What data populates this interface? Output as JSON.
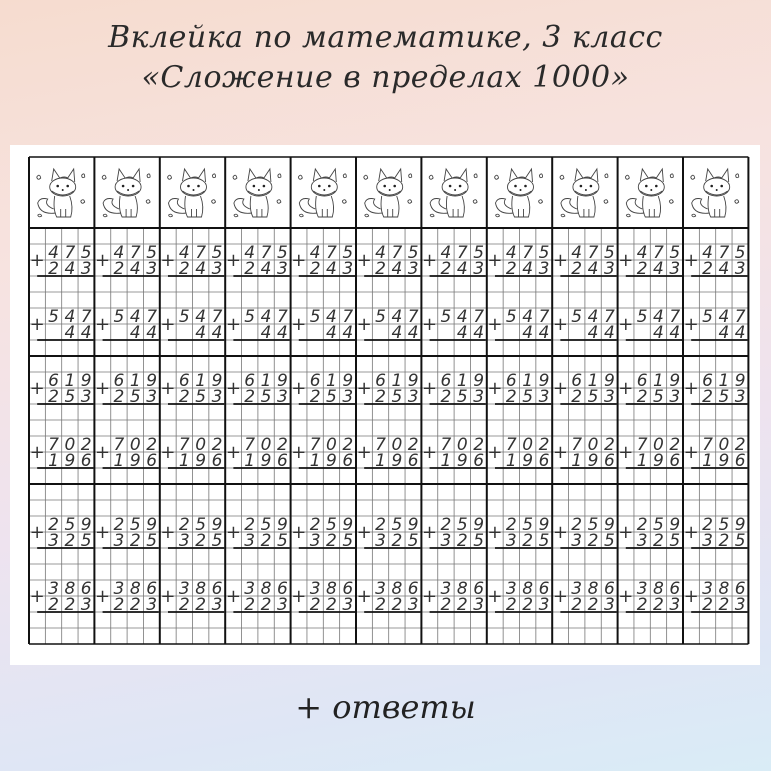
{
  "header": {
    "title_line1": "Вклейка по математике, 3 класс",
    "title_line2": "«Сложение в пределах 1000»"
  },
  "worksheet": {
    "columns": 11,
    "header_icon": "fox-icon",
    "operator": "+",
    "problems": [
      {
        "a": "475",
        "b": "243"
      },
      {
        "a": "547",
        "b": "44"
      },
      {
        "a": "619",
        "b": "253"
      },
      {
        "a": "702",
        "b": "196"
      },
      {
        "a": "259",
        "b": "325"
      },
      {
        "a": "386",
        "b": "223"
      }
    ]
  },
  "footer": {
    "answers_label": "+ ответы"
  }
}
